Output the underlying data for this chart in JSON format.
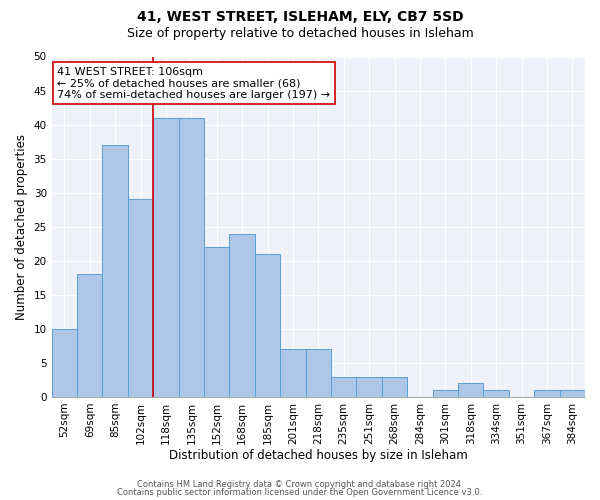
{
  "title": "41, WEST STREET, ISLEHAM, ELY, CB7 5SD",
  "subtitle": "Size of property relative to detached houses in Isleham",
  "xlabel": "Distribution of detached houses by size in Isleham",
  "ylabel": "Number of detached properties",
  "categories": [
    "52sqm",
    "69sqm",
    "85sqm",
    "102sqm",
    "118sqm",
    "135sqm",
    "152sqm",
    "168sqm",
    "185sqm",
    "201sqm",
    "218sqm",
    "235sqm",
    "251sqm",
    "268sqm",
    "284sqm",
    "301sqm",
    "318sqm",
    "334sqm",
    "351sqm",
    "367sqm",
    "384sqm"
  ],
  "values": [
    10,
    18,
    37,
    29,
    41,
    41,
    22,
    24,
    21,
    7,
    7,
    3,
    3,
    3,
    0,
    1,
    2,
    1,
    0,
    1,
    1
  ],
  "bar_color": "#aec6e8",
  "bar_edge_color": "#5a9fd4",
  "vline_color": "#cc0000",
  "vline_xindex": 3,
  "annotation_text": "41 WEST STREET: 106sqm\n← 25% of detached houses are smaller (68)\n74% of semi-detached houses are larger (197) →",
  "annotation_box_color": "#ffffff",
  "annotation_box_edge": "#cc0000",
  "ylim": [
    0,
    50
  ],
  "yticks": [
    0,
    5,
    10,
    15,
    20,
    25,
    30,
    35,
    40,
    45,
    50
  ],
  "footer1": "Contains HM Land Registry data © Crown copyright and database right 2024.",
  "footer2": "Contains public sector information licensed under the Open Government Licence v3.0.",
  "bg_color": "#eef2f8",
  "title_fontsize": 10,
  "subtitle_fontsize": 9,
  "xlabel_fontsize": 8.5,
  "ylabel_fontsize": 8.5,
  "tick_fontsize": 7.5,
  "annotation_fontsize": 8,
  "footer_fontsize": 6
}
